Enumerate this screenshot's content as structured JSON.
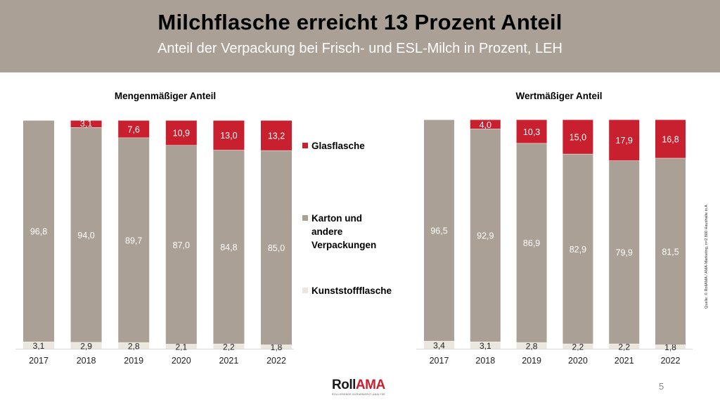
{
  "header": {
    "title": "Milchflasche erreicht 13 Prozent Anteil",
    "subtitle": "Anteil der Verpackung bei Frisch- und ESL-Milch in Prozent, LEH"
  },
  "colors": {
    "glasflasche": "#c8202f",
    "karton": "#aaa095",
    "kunststoff": "#ebe7df",
    "header_bg": "#aaa095"
  },
  "legend": [
    {
      "label_lines": [
        "Glasflasche"
      ],
      "color": "#c8202f"
    },
    {
      "label_lines": [
        "Karton und",
        "andere",
        "Verpackungen"
      ],
      "color": "#aaa095"
    },
    {
      "label_lines": [
        "Kunststoffflasche"
      ],
      "color": "#ebe7df"
    }
  ],
  "chart_data": [
    {
      "type": "bar",
      "stacked": true,
      "title": "Mengenmäßiger Anteil",
      "categories": [
        "2017",
        "2018",
        "2019",
        "2020",
        "2021",
        "2022"
      ],
      "ylim": [
        0,
        100
      ],
      "series": [
        {
          "name": "Kunststoffflasche",
          "values": [
            3.1,
            2.9,
            2.8,
            2.1,
            2.2,
            1.8
          ],
          "labels": [
            "3,1",
            "2,9",
            "2,8",
            "2,1",
            "2,2",
            "1,8"
          ]
        },
        {
          "name": "Karton und andere Verpackungen",
          "values": [
            96.8,
            94.0,
            89.7,
            87.0,
            84.8,
            85.0
          ],
          "labels": [
            "96,8",
            "94,0",
            "89,7",
            "87,0",
            "84,8",
            "85,0"
          ]
        },
        {
          "name": "Glasflasche",
          "values": [
            0,
            3.1,
            7.6,
            10.9,
            13.0,
            13.2
          ],
          "labels": [
            "",
            "3,1",
            "7,6",
            "10,9",
            "13,0",
            "13,2"
          ]
        }
      ],
      "legend": "right"
    },
    {
      "type": "bar",
      "stacked": true,
      "title": "Wertmäßiger Anteil",
      "categories": [
        "2017",
        "2018",
        "2019",
        "2020",
        "2021",
        "2022"
      ],
      "ylim": [
        0,
        100
      ],
      "series": [
        {
          "name": "Kunststoffflasche",
          "values": [
            3.4,
            3.1,
            2.8,
            2.2,
            2.2,
            1.8
          ],
          "labels": [
            "3,4",
            "3,1",
            "2,8",
            "2,2",
            "2,2",
            "1,8"
          ]
        },
        {
          "name": "Karton und andere Verpackungen",
          "values": [
            96.5,
            92.9,
            86.9,
            82.9,
            79.9,
            81.5
          ],
          "labels": [
            "96,5",
            "92,9",
            "86,9",
            "82,9",
            "79,9",
            "81,5"
          ]
        },
        {
          "name": "Glasflasche",
          "values": [
            0,
            4.0,
            10.3,
            15.0,
            17.9,
            16.8
          ],
          "labels": [
            "",
            "4,0",
            "10,3",
            "15,0",
            "17,9",
            "16,8"
          ]
        }
      ]
    }
  ],
  "source": "Quelle: © RollAMA / AMA-Marketing, n=2.800 Haushalte in A",
  "logo": {
    "part1": "Roll",
    "part2": "AMA",
    "tagline": "ROLLIERENDE AGRARMARKT-ANALYSE"
  },
  "page_number": "5"
}
